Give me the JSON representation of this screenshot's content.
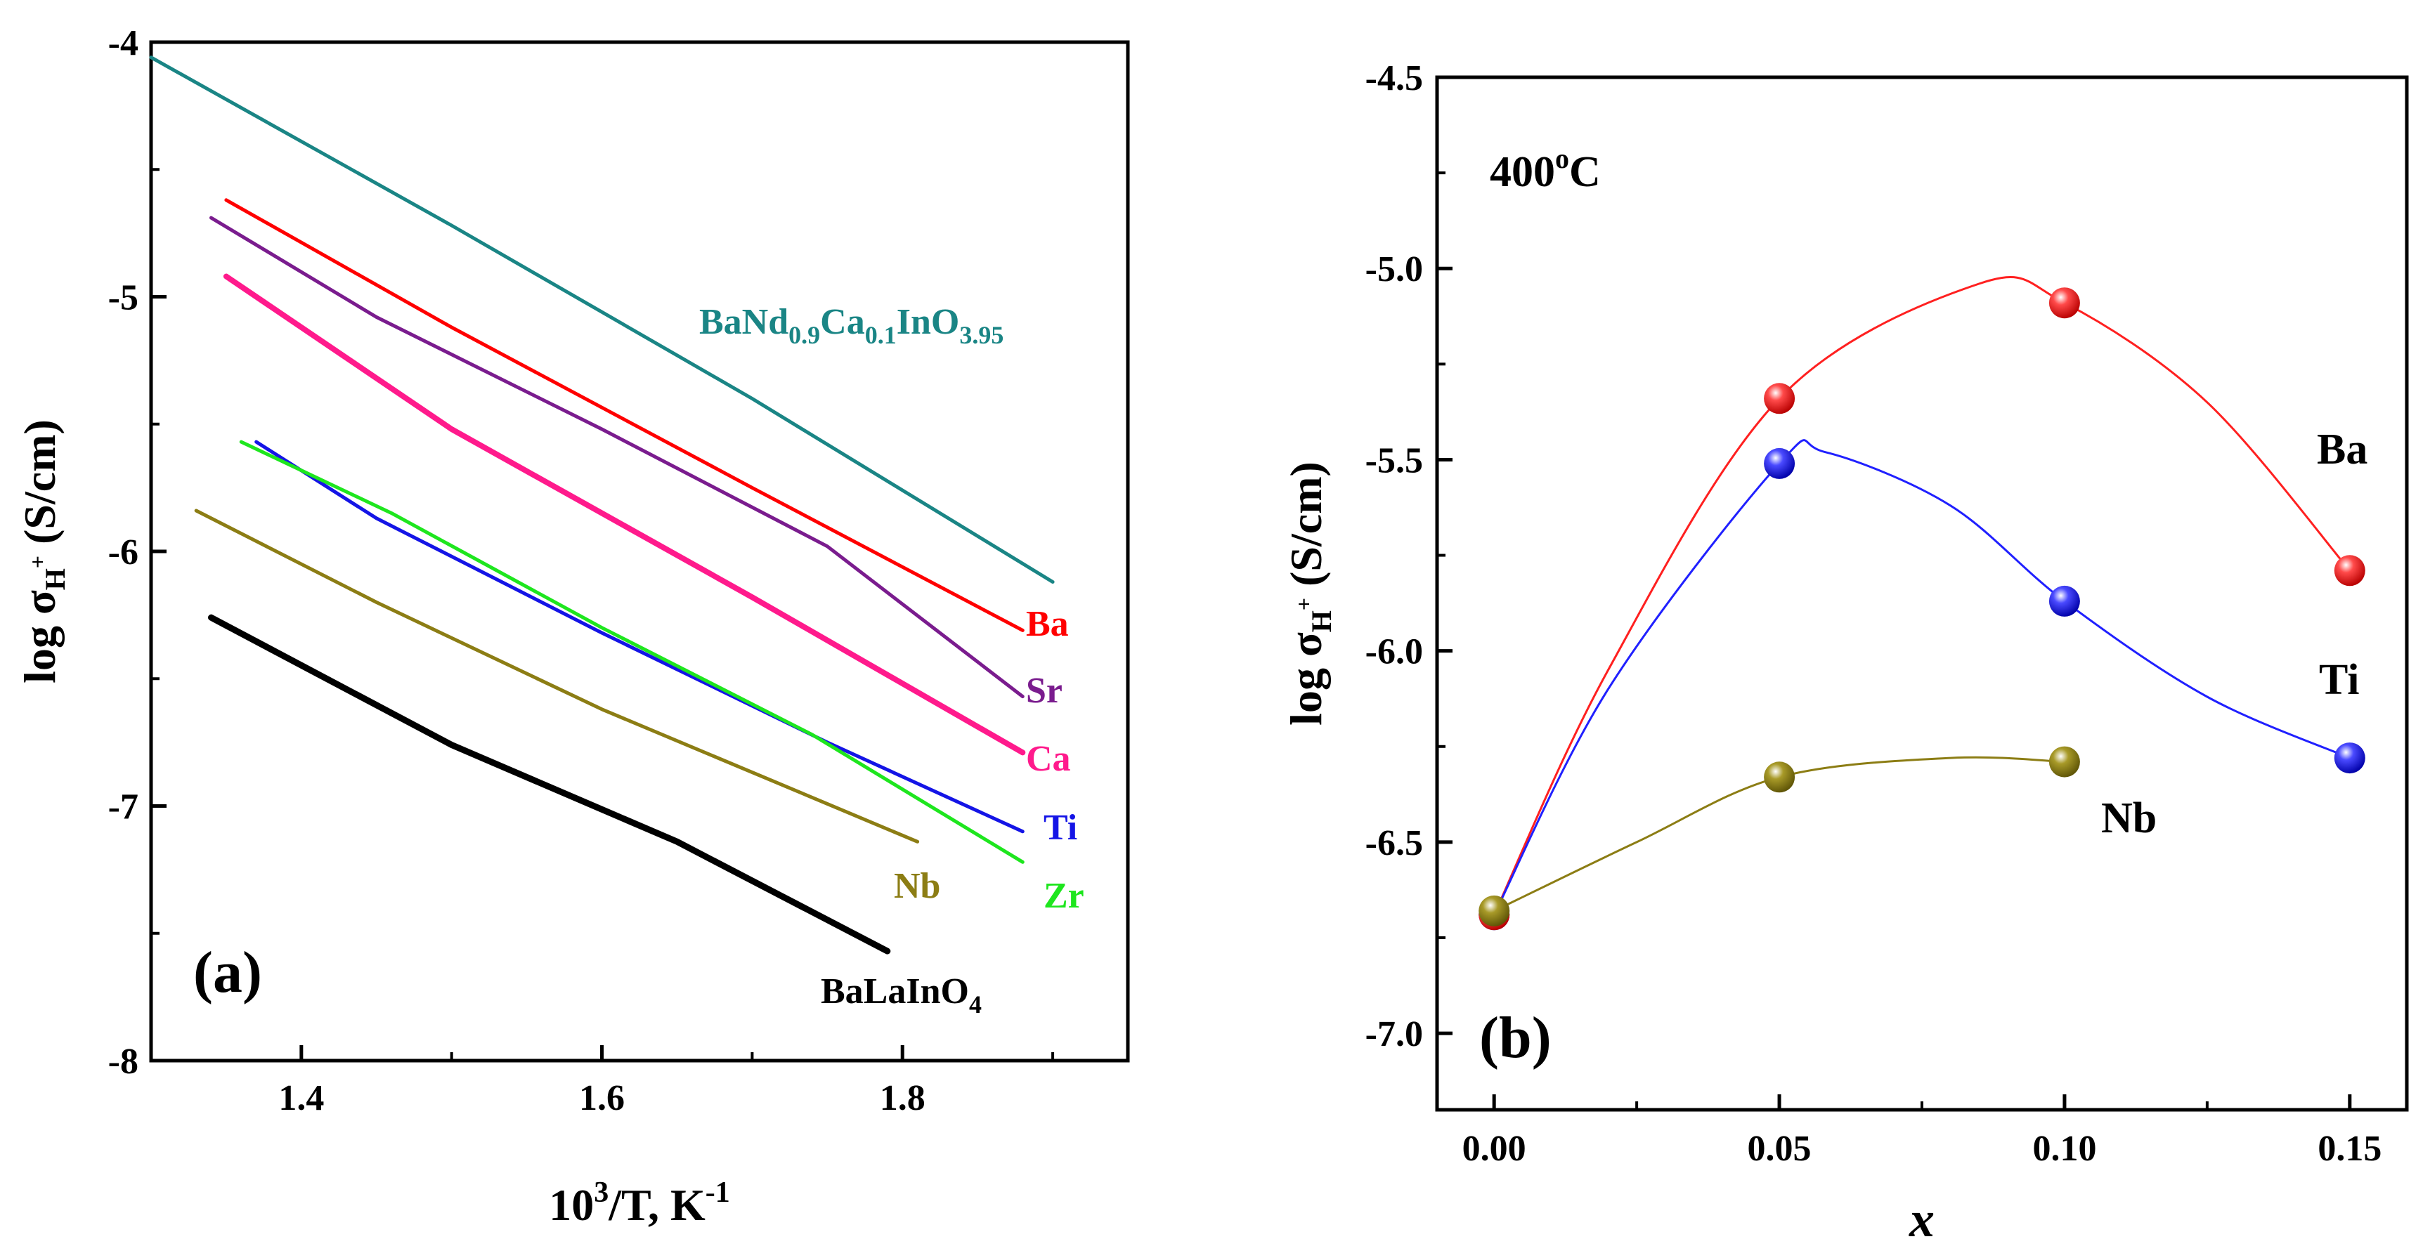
{
  "chart_data": [
    {
      "panel": "(a)",
      "type": "line",
      "xlabel": "10^3/T, K^-1",
      "ylabel": "log σH+ (S/cm)",
      "xlim": [
        1.3,
        1.95
      ],
      "ylim": [
        -8,
        -4
      ],
      "x_ticks": [
        "1.4",
        "1.6",
        "1.8"
      ],
      "y_ticks": [
        "-4",
        "-5",
        "-6",
        "-7",
        "-8"
      ],
      "series": [
        {
          "name": "BaNd0.9Ca0.1InO3.95",
          "color": "#1a8585",
          "label_text": "BaNd",
          "label_sub1": "0.9",
          "label_mid": "Ca",
          "label_sub2": "0.1",
          "label_mid2": "InO",
          "label_sub3": "3.95",
          "x": [
            1.3,
            1.5,
            1.7,
            1.9
          ],
          "y": [
            -4.06,
            -4.72,
            -5.4,
            -6.12
          ]
        },
        {
          "name": "Ba",
          "color": "#ff0000",
          "label": "Ba",
          "x": [
            1.35,
            1.5,
            1.7,
            1.88
          ],
          "y": [
            -4.62,
            -5.12,
            -5.75,
            -6.31
          ]
        },
        {
          "name": "Sr",
          "color": "#7a1c8e",
          "label": "Sr",
          "x": [
            1.34,
            1.45,
            1.6,
            1.75,
            1.88
          ],
          "y": [
            -4.69,
            -5.08,
            -5.52,
            -5.98,
            -6.57
          ]
        },
        {
          "name": "Ca",
          "color": "#ff1a8c",
          "label": "Ca",
          "x": [
            1.35,
            1.5,
            1.7,
            1.88
          ],
          "y": [
            -4.92,
            -5.52,
            -6.18,
            -6.79
          ]
        },
        {
          "name": "Ti",
          "color": "#1414e6",
          "label": "Ti",
          "x": [
            1.37,
            1.45,
            1.6,
            1.75,
            1.88
          ],
          "y": [
            -5.57,
            -5.87,
            -6.32,
            -6.75,
            -7.1
          ]
        },
        {
          "name": "Zr",
          "color": "#1ee61e",
          "label": "Zr",
          "x": [
            1.36,
            1.46,
            1.6,
            1.74,
            1.88
          ],
          "y": [
            -5.57,
            -5.85,
            -6.3,
            -6.72,
            -7.22
          ]
        },
        {
          "name": "Nb",
          "color": "#8c7d14",
          "label": "Nb",
          "x": [
            1.33,
            1.45,
            1.6,
            1.81
          ],
          "y": [
            -5.84,
            -6.2,
            -6.62,
            -7.14
          ]
        },
        {
          "name": "BaLaInO4",
          "color": "#000000",
          "label_text": "BaLaInO",
          "label_sub": "4",
          "x": [
            1.34,
            1.5,
            1.65,
            1.79
          ],
          "y": [
            -6.26,
            -6.76,
            -7.14,
            -7.57
          ]
        }
      ]
    },
    {
      "panel": "(b)",
      "type": "scatter",
      "annotation": "400",
      "annotation_sup": "o",
      "annotation_tail": "C",
      "xlabel": "x",
      "ylabel": "log σH+ (S/cm)",
      "xlim": [
        -0.01,
        0.16
      ],
      "ylim": [
        -7.2,
        -4.5
      ],
      "x_ticks": [
        "0.00",
        "0.05",
        "0.10",
        "0.15"
      ],
      "y_ticks": [
        "-4.5",
        "-5.0",
        "-5.5",
        "-6.0",
        "-6.5",
        "-7.0"
      ],
      "series": [
        {
          "name": "Ba",
          "color": "#ff2020",
          "label": "Ba",
          "x": [
            0.0,
            0.05,
            0.1,
            0.15
          ],
          "y": [
            -6.69,
            -5.34,
            -5.09,
            -5.79
          ],
          "curve_x": [
            0.0,
            0.02,
            0.05,
            0.085,
            0.1,
            0.125,
            0.15
          ],
          "curve_y": [
            -6.69,
            -6.05,
            -5.34,
            -5.04,
            -5.09,
            -5.35,
            -5.79
          ]
        },
        {
          "name": "Ti",
          "color": "#2020ff",
          "label": "Ti",
          "x": [
            0.0,
            0.05,
            0.1,
            0.15
          ],
          "y": [
            -6.69,
            -5.51,
            -5.87,
            -6.28
          ],
          "curve_x": [
            0.0,
            0.02,
            0.05,
            0.058,
            0.08,
            0.1,
            0.125,
            0.15
          ],
          "curve_y": [
            -6.69,
            -6.1,
            -5.51,
            -5.48,
            -5.62,
            -5.87,
            -6.12,
            -6.28
          ]
        },
        {
          "name": "Nb",
          "color": "#8c7d14",
          "label": "Nb",
          "x": [
            0.0,
            0.05,
            0.1
          ],
          "y": [
            -6.68,
            -6.33,
            -6.29
          ],
          "curve_x": [
            0.0,
            0.025,
            0.05,
            0.08,
            0.1
          ],
          "curve_y": [
            -6.68,
            -6.5,
            -6.33,
            -6.28,
            -6.29
          ]
        }
      ]
    }
  ]
}
